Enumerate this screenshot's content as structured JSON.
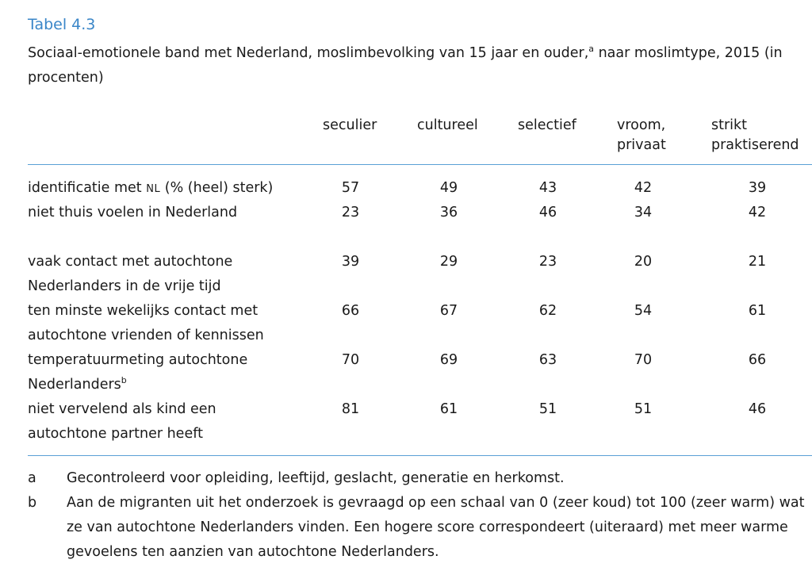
{
  "table_label": "Tabel 4.3",
  "caption": {
    "text": "Sociaal-emotionele band met Nederland, moslimbevolking van 15 jaar en ouder,",
    "sup": "a",
    "text_after": " naar moslimtype, 2015 (in procenten)"
  },
  "columns": [
    {
      "line1": "",
      "line2": "seculier"
    },
    {
      "line1": "",
      "line2": "cultureel"
    },
    {
      "line1": "",
      "line2": "selectief"
    },
    {
      "line1": "vroom,",
      "line2": "privaat"
    },
    {
      "line1": "strikt",
      "line2": "praktiserend"
    }
  ],
  "rows": [
    {
      "label_pre": "identificatie met ",
      "label_sc": "NL",
      "label_post": " (% (heel) sterk)",
      "label_line2": "",
      "sup": "",
      "values": [
        "57",
        "49",
        "43",
        "42",
        "39"
      ]
    },
    {
      "label_pre": "niet thuis voelen in Nederland",
      "label_sc": "",
      "label_post": "",
      "label_line2": "",
      "sup": "",
      "values": [
        "23",
        "36",
        "46",
        "34",
        "42"
      ]
    },
    {
      "label_pre": "vaak contact met autochtone",
      "label_sc": "",
      "label_post": "",
      "label_line2": "Nederlanders in de vrije tijd",
      "sup": "",
      "values": [
        "39",
        "29",
        "23",
        "20",
        "21"
      ]
    },
    {
      "label_pre": "ten minste wekelijks contact met",
      "label_sc": "",
      "label_post": "",
      "label_line2": "autochtone vrienden of kennissen",
      "sup": "",
      "values": [
        "66",
        "67",
        "62",
        "54",
        "61"
      ]
    },
    {
      "label_pre": "temperatuurmeting autochtone",
      "label_sc": "",
      "label_post": "",
      "label_line2": "Nederlanders",
      "sup": "b",
      "values": [
        "70",
        "69",
        "63",
        "70",
        "66"
      ]
    },
    {
      "label_pre": "niet vervelend als kind een",
      "label_sc": "",
      "label_post": "",
      "label_line2": "autochtone partner heeft",
      "sup": "",
      "values": [
        "81",
        "61",
        "51",
        "51",
        "46"
      ]
    }
  ],
  "footnotes": [
    {
      "key": "a",
      "text": "Gecontroleerd voor opleiding, leeftijd, geslacht, generatie en herkomst."
    },
    {
      "key": "b",
      "text": "Aan de migranten uit het onderzoek is gevraagd op een schaal van 0 (zeer koud) tot 100 (zeer warm) wat ze van autochtone Nederlanders vinden. Een hogere score correspondeert (uiteraard) met meer warme gevoelens ten aanzien van autochtone Nederlanders."
    }
  ],
  "colors": {
    "accent": "#3a86c8",
    "rule": "#5aa0d6",
    "text": "#1a1a1a"
  }
}
